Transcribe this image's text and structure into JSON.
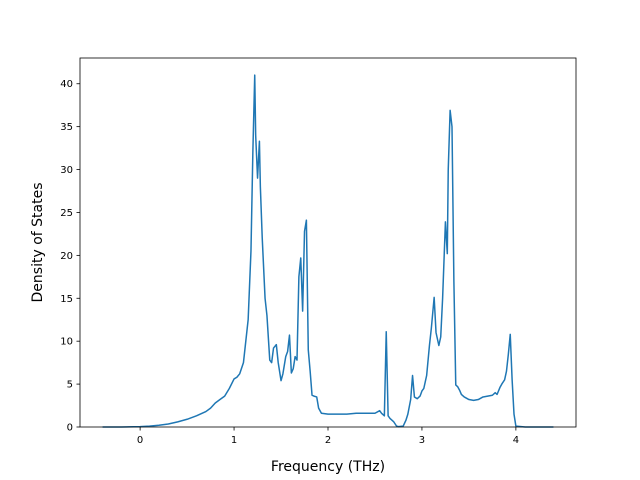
{
  "chart_data": {
    "type": "line",
    "title": "",
    "xlabel": "Frequency (THz)",
    "ylabel": "Density of States",
    "xlim": [
      -0.64,
      4.64
    ],
    "ylim": [
      0,
      43
    ],
    "xticks": [
      0,
      1,
      2,
      3,
      4
    ],
    "xtick_labels": [
      "0",
      "1",
      "2",
      "3",
      "4"
    ],
    "yticks": [
      0,
      5,
      10,
      15,
      20,
      25,
      30,
      35,
      40
    ],
    "ytick_labels": [
      "0",
      "5",
      "10",
      "15",
      "20",
      "25",
      "30",
      "35",
      "40"
    ],
    "grid": false,
    "legend": false,
    "line_color": "#1f77b4",
    "series": [
      {
        "x": [
          -0.4,
          -0.2,
          0.0,
          0.1,
          0.2,
          0.3,
          0.4,
          0.5,
          0.6,
          0.7,
          0.75,
          0.8,
          0.85,
          0.9,
          0.95,
          1.0,
          1.03,
          1.06,
          1.1,
          1.15,
          1.18,
          1.2,
          1.22,
          1.23,
          1.25,
          1.27,
          1.28,
          1.3,
          1.33,
          1.35,
          1.38,
          1.4,
          1.42,
          1.45,
          1.47,
          1.5,
          1.52,
          1.55,
          1.57,
          1.59,
          1.61,
          1.63,
          1.65,
          1.67,
          1.69,
          1.71,
          1.73,
          1.75,
          1.77,
          1.79,
          1.81,
          1.83,
          1.85,
          1.88,
          1.9,
          1.93,
          1.97,
          2.0,
          2.1,
          2.2,
          2.3,
          2.4,
          2.5,
          2.55,
          2.57,
          2.6,
          2.62,
          2.64,
          2.66,
          2.7,
          2.73,
          2.75,
          2.8,
          2.83,
          2.85,
          2.88,
          2.9,
          2.92,
          2.95,
          2.98,
          3.0,
          3.02,
          3.05,
          3.08,
          3.1,
          3.13,
          3.15,
          3.18,
          3.2,
          3.22,
          3.25,
          3.27,
          3.28,
          3.3,
          3.32,
          3.34,
          3.36,
          3.38,
          3.4,
          3.42,
          3.45,
          3.5,
          3.55,
          3.6,
          3.65,
          3.7,
          3.75,
          3.78,
          3.8,
          3.83,
          3.85,
          3.88,
          3.9,
          3.92,
          3.94,
          3.96,
          3.98,
          4.0,
          4.1,
          4.2,
          4.3,
          4.4
        ],
        "y": [
          0,
          0,
          0.05,
          0.1,
          0.2,
          0.35,
          0.6,
          0.9,
          1.3,
          1.8,
          2.2,
          2.8,
          3.2,
          3.6,
          4.5,
          5.6,
          5.8,
          6.2,
          7.5,
          12.5,
          20.5,
          32,
          41,
          34,
          29,
          33.3,
          28,
          22,
          15,
          13,
          7.8,
          7.5,
          9.2,
          9.6,
          7.5,
          5.4,
          6.2,
          8.2,
          8.8,
          10.7,
          6.3,
          6.8,
          8.2,
          7.8,
          17.5,
          19.7,
          13.5,
          22.8,
          24.1,
          9,
          6.5,
          3.7,
          3.6,
          3.5,
          2.2,
          1.6,
          1.55,
          1.5,
          1.5,
          1.5,
          1.6,
          1.6,
          1.6,
          1.9,
          1.6,
          1.3,
          11.1,
          1.3,
          1.0,
          0.6,
          0.1,
          0.05,
          0.1,
          0.8,
          1.5,
          3.2,
          6.0,
          3.5,
          3.3,
          3.6,
          4.2,
          4.5,
          6,
          9.5,
          11.5,
          15.1,
          11,
          9.5,
          10.5,
          15,
          23.9,
          20.2,
          30,
          36.9,
          35,
          17,
          4.9,
          4.7,
          4.3,
          3.8,
          3.5,
          3.2,
          3.1,
          3.2,
          3.5,
          3.6,
          3.7,
          4.0,
          3.8,
          4.6,
          5.0,
          5.5,
          6.5,
          8.5,
          10.8,
          5.5,
          1.5,
          0.1,
          0,
          0,
          0,
          0
        ]
      }
    ]
  }
}
